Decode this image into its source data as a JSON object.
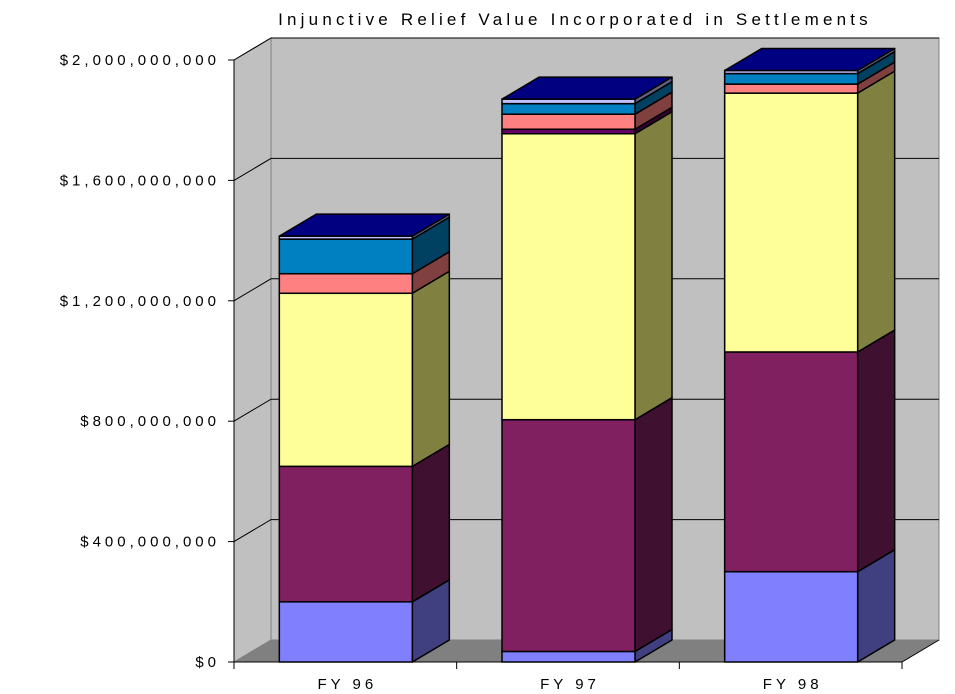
{
  "chart_data": {
    "type": "bar",
    "stacked": true,
    "three_d": true,
    "title": "Injunctive Relief Value Incorporated in Settlements",
    "categories": [
      "FY 96",
      "FY 97",
      "FY 98"
    ],
    "y_ticks": [
      "$0",
      "$400,000,000",
      "$800,000,000",
      "$1,200,000,000",
      "$1,600,000,000",
      "$2,000,000,000"
    ],
    "y_tick_values": [
      0,
      400000000,
      800000000,
      1200000000,
      1600000000,
      2000000000
    ],
    "ylim": [
      0,
      2000000000
    ],
    "grid": true,
    "legend": "none",
    "series": [
      {
        "values": [
          200000000,
          35000000,
          300000000
        ],
        "color": "#8080ff",
        "side_color": "#404080"
      },
      {
        "values": [
          450000000,
          770000000,
          730000000
        ],
        "color": "#802060",
        "side_color": "#401030"
      },
      {
        "values": [
          575000000,
          950000000,
          860000000
        ],
        "color": "#ffff99",
        "side_color": "#808040"
      },
      {
        "values": [
          0,
          15000000,
          0
        ],
        "color": "#660066",
        "side_color": "#330033"
      },
      {
        "values": [
          65000000,
          50000000,
          30000000
        ],
        "color": "#ff8080",
        "side_color": "#804040"
      },
      {
        "values": [
          115000000,
          35000000,
          35000000
        ],
        "color": "#0080c0",
        "side_color": "#004060"
      },
      {
        "values": [
          10000000,
          15000000,
          10000000
        ],
        "color": "#c0c0ff",
        "side_color": "#606080"
      }
    ],
    "top_face_color": "#000080",
    "plot_wall_color": "#c0c0c0",
    "floor_color": "#808080"
  }
}
